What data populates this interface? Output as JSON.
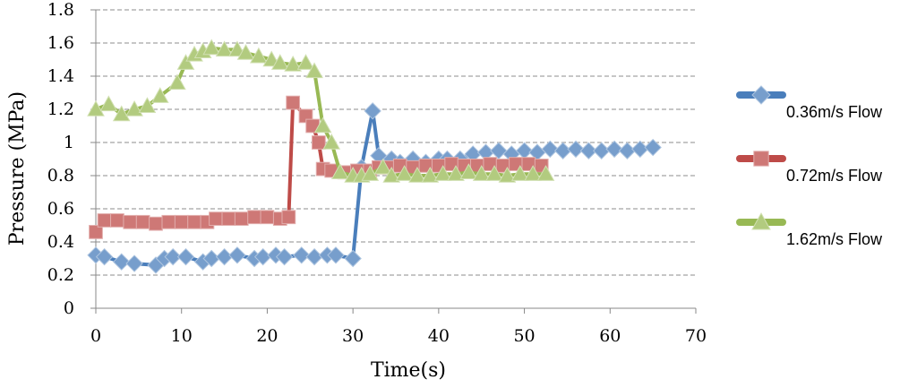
{
  "chart_data": {
    "type": "line",
    "title": "",
    "xlabel": "Time(s)",
    "ylabel": "Pressure (MPa)",
    "xlim": [
      0,
      70
    ],
    "ylim": [
      0,
      1.8
    ],
    "xticks": [
      "0",
      "10",
      "20",
      "30",
      "40",
      "50",
      "60",
      "70"
    ],
    "yticks": [
      "0",
      "0.2",
      "0.4",
      "0.6",
      "0.8",
      "1",
      "1.2",
      "1.4",
      "1.6",
      "1.8"
    ],
    "grid": "horizontal-dashed",
    "legend_position": "right",
    "series": [
      {
        "name": "0.36m/s Flow",
        "color": "#4a7ebb",
        "marker": "diamond",
        "points": [
          [
            0,
            0.32
          ],
          [
            1,
            0.31
          ],
          [
            3,
            0.28
          ],
          [
            4.5,
            0.27
          ],
          [
            7,
            0.26
          ],
          [
            8,
            0.3
          ],
          [
            9,
            0.31
          ],
          [
            10.5,
            0.31
          ],
          [
            12.5,
            0.28
          ],
          [
            13.5,
            0.3
          ],
          [
            15,
            0.31
          ],
          [
            16.5,
            0.32
          ],
          [
            18.5,
            0.3
          ],
          [
            19.5,
            0.31
          ],
          [
            21,
            0.32
          ],
          [
            22,
            0.31
          ],
          [
            24,
            0.32
          ],
          [
            25.5,
            0.31
          ],
          [
            27,
            0.32
          ],
          [
            28,
            0.32
          ],
          [
            30,
            0.3
          ],
          [
            31,
            0.85
          ],
          [
            32.3,
            1.19
          ],
          [
            33,
            0.92
          ],
          [
            34.5,
            0.9
          ],
          [
            35.5,
            0.88
          ],
          [
            37,
            0.9
          ],
          [
            38.5,
            0.88
          ],
          [
            40,
            0.9
          ],
          [
            41,
            0.9
          ],
          [
            42.5,
            0.9
          ],
          [
            44,
            0.93
          ],
          [
            45.5,
            0.94
          ],
          [
            47,
            0.95
          ],
          [
            48.5,
            0.93
          ],
          [
            50,
            0.95
          ],
          [
            51.5,
            0.94
          ],
          [
            53,
            0.96
          ],
          [
            54.5,
            0.95
          ],
          [
            56,
            0.96
          ],
          [
            57.5,
            0.95
          ],
          [
            59,
            0.95
          ],
          [
            60.5,
            0.96
          ],
          [
            62,
            0.95
          ],
          [
            63.5,
            0.96
          ],
          [
            65,
            0.97
          ]
        ]
      },
      {
        "name": "0.72m/s Flow",
        "color": "#be4b48",
        "marker": "square",
        "points": [
          [
            0,
            0.46
          ],
          [
            1,
            0.53
          ],
          [
            2.5,
            0.53
          ],
          [
            4,
            0.52
          ],
          [
            5.5,
            0.52
          ],
          [
            7,
            0.51
          ],
          [
            8.5,
            0.52
          ],
          [
            10,
            0.52
          ],
          [
            11.5,
            0.52
          ],
          [
            13,
            0.52
          ],
          [
            14,
            0.54
          ],
          [
            15.5,
            0.54
          ],
          [
            17,
            0.54
          ],
          [
            18.5,
            0.55
          ],
          [
            20,
            0.55
          ],
          [
            21.5,
            0.54
          ],
          [
            22.5,
            0.55
          ],
          [
            23,
            1.24
          ],
          [
            24.5,
            1.16
          ],
          [
            25.3,
            1.1
          ],
          [
            26,
            1.0
          ],
          [
            26.5,
            0.84
          ],
          [
            27.5,
            0.83
          ],
          [
            29,
            0.82
          ],
          [
            30.5,
            0.83
          ],
          [
            32,
            0.83
          ],
          [
            33,
            0.85
          ],
          [
            34,
            0.85
          ],
          [
            35.5,
            0.86
          ],
          [
            37,
            0.85
          ],
          [
            38.5,
            0.86
          ],
          [
            40,
            0.86
          ],
          [
            41.5,
            0.87
          ],
          [
            43,
            0.86
          ],
          [
            44.5,
            0.86
          ],
          [
            46,
            0.87
          ],
          [
            47.5,
            0.86
          ],
          [
            49,
            0.87
          ],
          [
            50.5,
            0.87
          ],
          [
            52,
            0.86
          ]
        ]
      },
      {
        "name": "1.62m/s Flow",
        "color": "#98b954",
        "marker": "triangle",
        "points": [
          [
            0,
            1.2
          ],
          [
            1.5,
            1.23
          ],
          [
            3,
            1.17
          ],
          [
            4.5,
            1.2
          ],
          [
            6,
            1.22
          ],
          [
            7.5,
            1.28
          ],
          [
            9.5,
            1.36
          ],
          [
            10.5,
            1.48
          ],
          [
            11.5,
            1.53
          ],
          [
            12.5,
            1.55
          ],
          [
            13.5,
            1.57
          ],
          [
            15,
            1.56
          ],
          [
            16.5,
            1.56
          ],
          [
            17.5,
            1.54
          ],
          [
            19,
            1.52
          ],
          [
            20.5,
            1.5
          ],
          [
            21.5,
            1.48
          ],
          [
            23,
            1.47
          ],
          [
            24.5,
            1.48
          ],
          [
            25.5,
            1.43
          ],
          [
            26.5,
            1.1
          ],
          [
            27.5,
            1.0
          ],
          [
            28.5,
            0.82
          ],
          [
            30,
            0.8
          ],
          [
            31,
            0.8
          ],
          [
            32,
            0.81
          ],
          [
            33.5,
            0.85
          ],
          [
            34.5,
            0.8
          ],
          [
            36,
            0.81
          ],
          [
            37.5,
            0.8
          ],
          [
            39,
            0.8
          ],
          [
            40.5,
            0.81
          ],
          [
            42,
            0.81
          ],
          [
            43.5,
            0.82
          ],
          [
            45,
            0.81
          ],
          [
            46.5,
            0.81
          ],
          [
            48,
            0.8
          ],
          [
            49.5,
            0.81
          ],
          [
            51,
            0.81
          ],
          [
            52.5,
            0.81
          ]
        ]
      }
    ]
  }
}
